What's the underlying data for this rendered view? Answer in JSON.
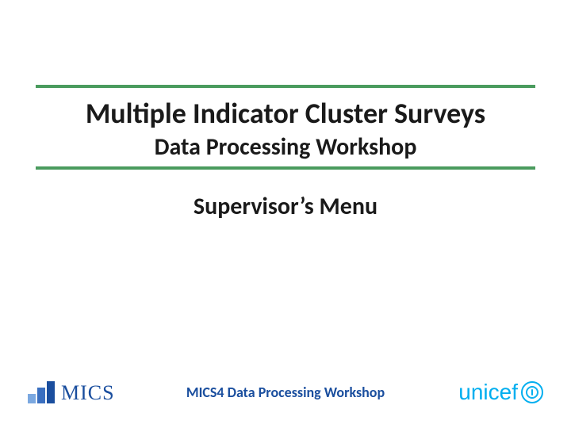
{
  "colors": {
    "rule": "#4a9b5e",
    "text_primary": "#1a1a1a",
    "mics_blue": "#1a4e9e",
    "mics_bar_light": "#7ba8e0",
    "footer_blue": "#1a4e9e",
    "unicef_blue": "#00aeef"
  },
  "typography": {
    "title_main_size": 36,
    "title_sub_size": 30,
    "subtitle_size": 30,
    "footer_center_size": 18,
    "mics_text_size": 26,
    "unicef_text_size": 28
  },
  "header": {
    "title_main": "Multiple Indicator Cluster Surveys",
    "title_sub": "Data Processing Workshop"
  },
  "subtitle": "Supervisor’s Menu",
  "footer": {
    "center_text": "MICS4 Data Processing Workshop",
    "mics_label": "MICS",
    "unicef_label": "unicef"
  },
  "mics_bars": {
    "heights": [
      12,
      20,
      28
    ],
    "colors": [
      "#7ba8e0",
      "#3a6fc0",
      "#1a4e9e"
    ]
  }
}
